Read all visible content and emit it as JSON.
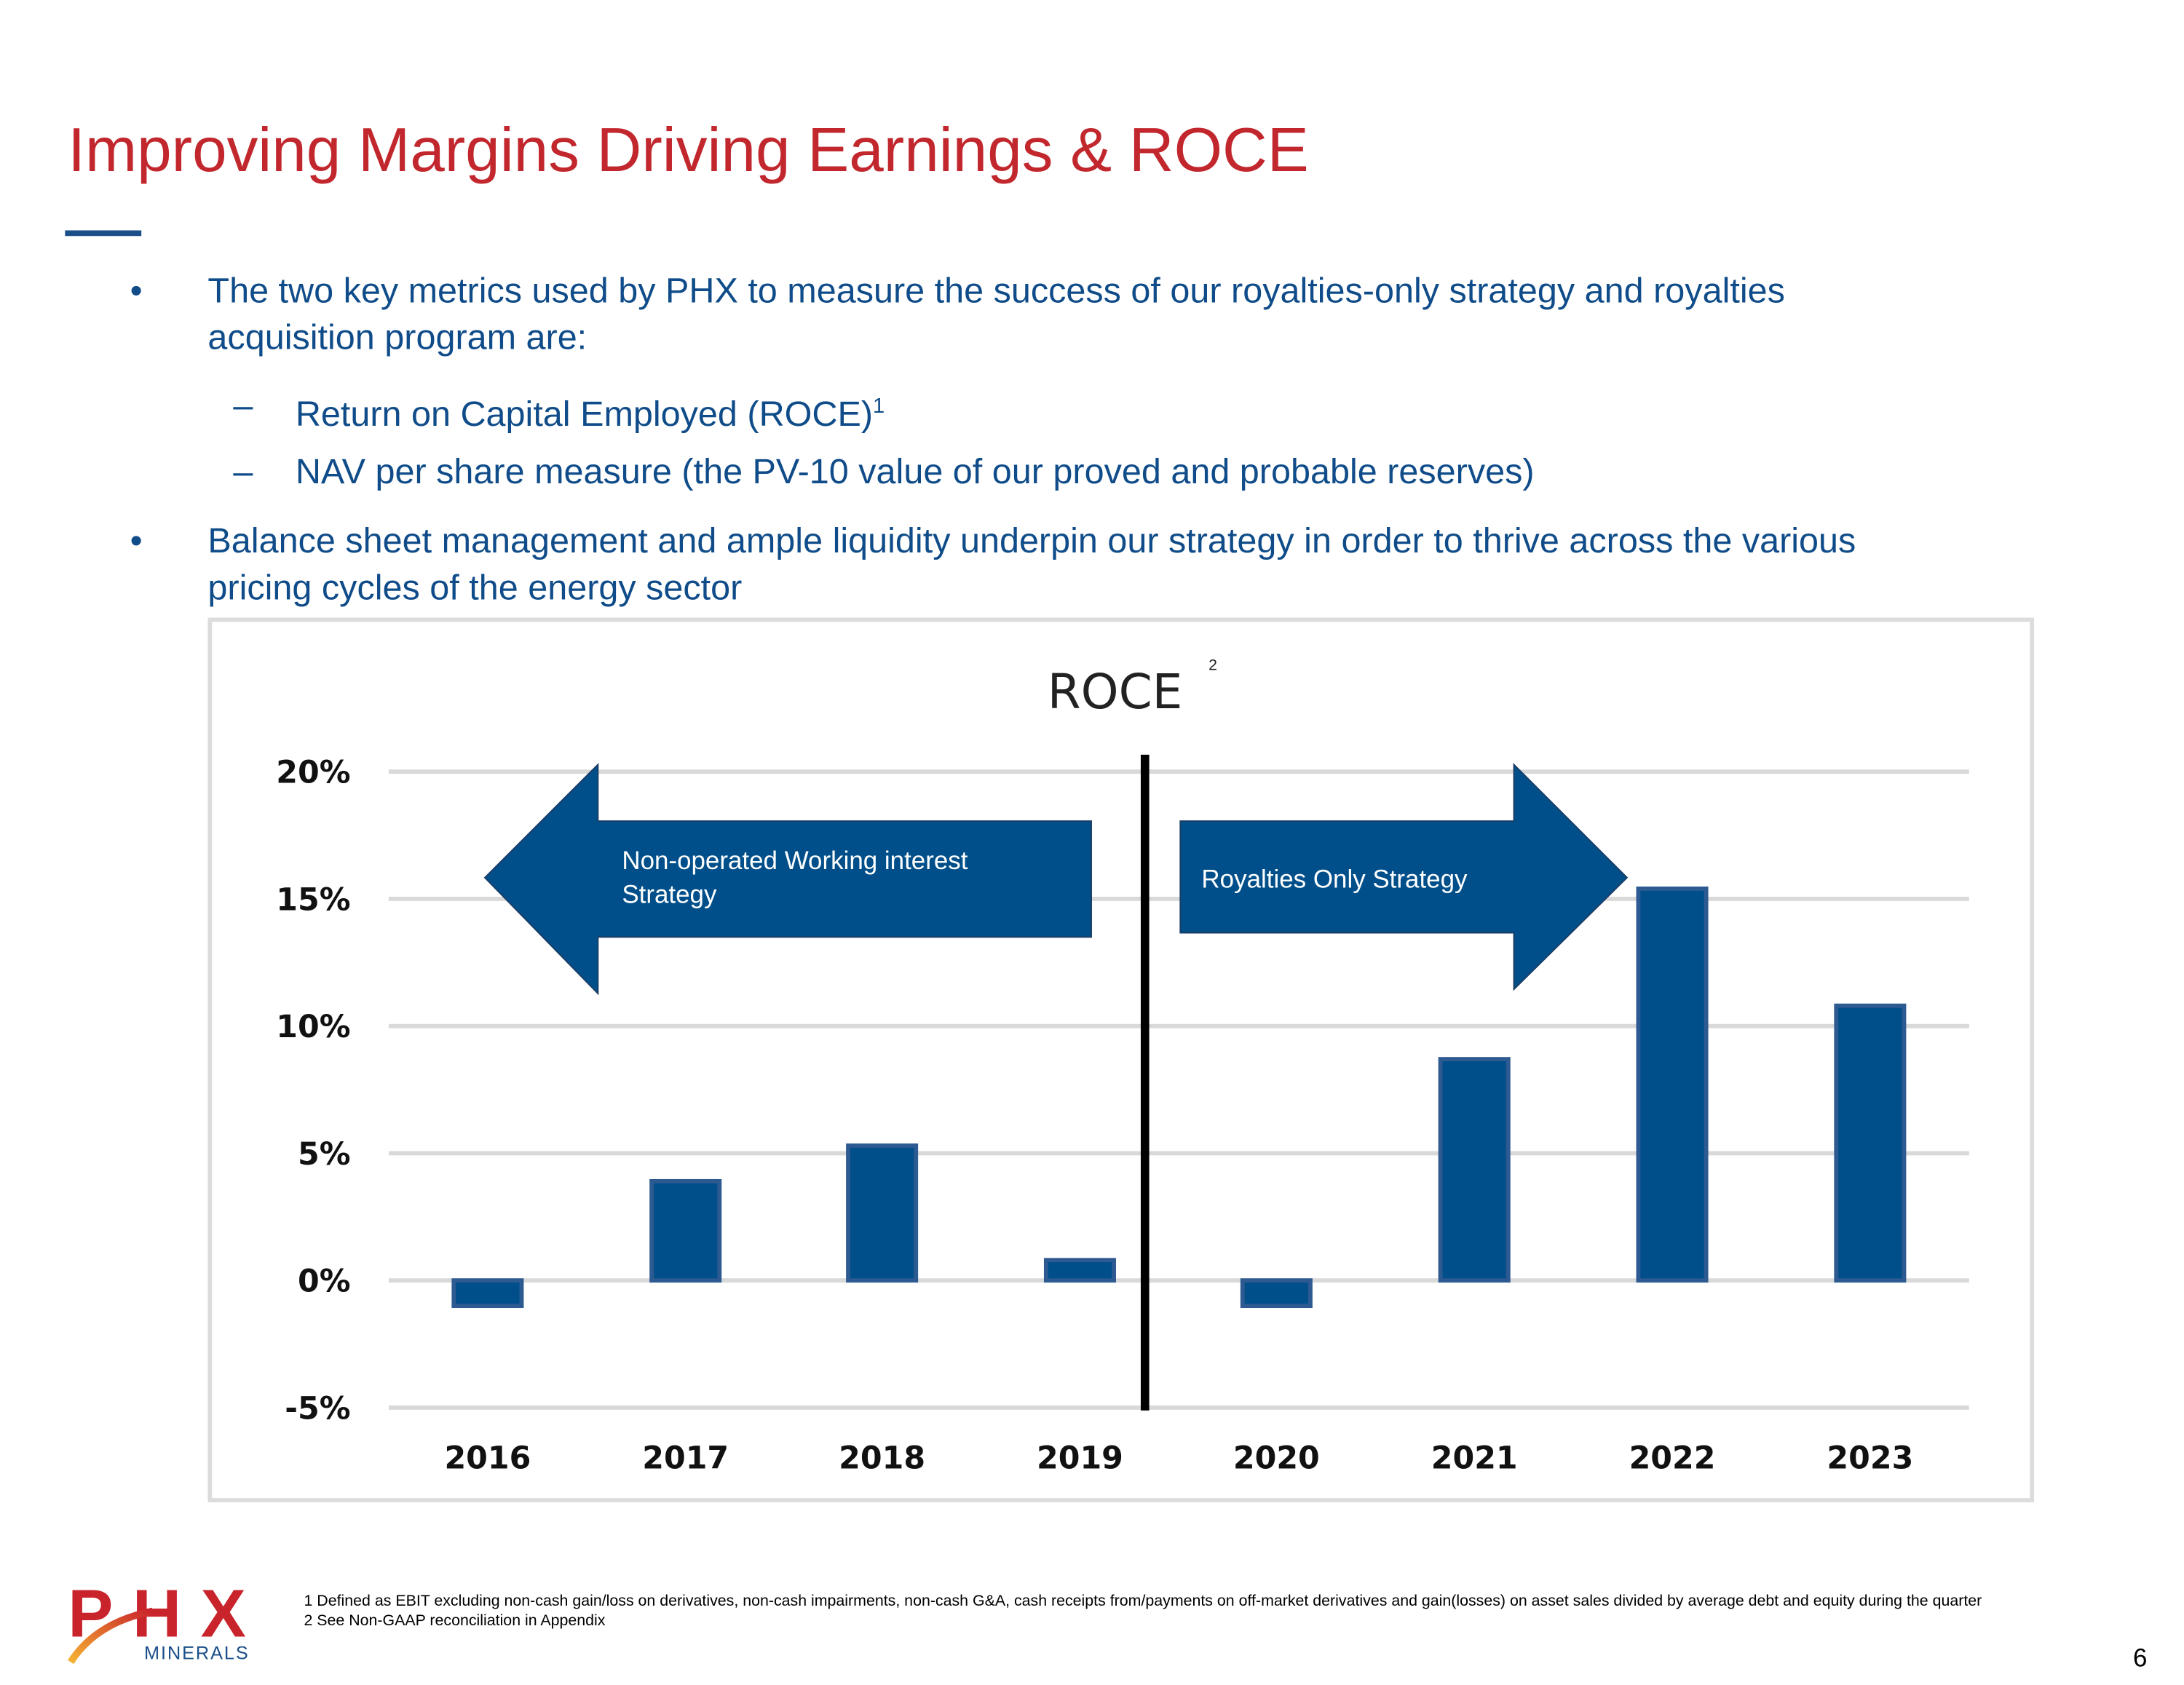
{
  "title": "Improving Margins Driving Earnings & ROCE",
  "bullets": [
    {
      "marker": "•",
      "text_line1": "The two key metrics used by PHX to measure the success of our royalties-only strategy and royalties",
      "text_line2": "acquisition program are:"
    },
    {
      "marker": "–",
      "text": "Return on Capital Employed (ROCE)",
      "sup": "1"
    },
    {
      "marker": "–",
      "text": "NAV per share measure (the PV-10 value of our proved and probable reserves)"
    },
    {
      "marker": "•",
      "text_line1": "Balance sheet management and ample liquidity underpin our strategy in order to thrive across the various",
      "text_line2": "pricing cycles of the energy sector"
    }
  ],
  "chart_data": {
    "type": "bar",
    "title": "ROCE",
    "title_sup": "2",
    "categories": [
      "2016",
      "2017",
      "2018",
      "2019",
      "2020",
      "2021",
      "2022",
      "2023"
    ],
    "values": [
      -1.0,
      3.9,
      5.3,
      0.8,
      -1.0,
      8.7,
      15.4,
      10.8
    ],
    "unit": "%",
    "ylim": [
      -5,
      20
    ],
    "yticks": [
      -5,
      0,
      5,
      10,
      15,
      20
    ],
    "ytick_labels": [
      "-5%",
      "0%",
      "5%",
      "10%",
      "15%",
      "20%"
    ],
    "grid": true,
    "bar_color": "#004f8a",
    "annotations": {
      "left_arrow": "Non-operated Working interest Strategy",
      "left_arrow_line1": "Non-operated Working interest",
      "left_arrow_line2": "Strategy",
      "right_arrow": "Royalties Only Strategy",
      "divider_between": [
        "2019",
        "2020"
      ]
    }
  },
  "footnotes": [
    "1 Defined as EBIT excluding non-cash gain/loss on derivatives, non-cash impairments, non-cash G&A, cash receipts from/payments on off-market derivatives and gain(losses) on asset sales divided by average debt and equity during the quarter",
    "2 See Non-GAAP reconciliation in Appendix"
  ],
  "logo": {
    "main": "PHX",
    "sub": "MINERALS"
  },
  "page_number": "6",
  "colors": {
    "title": "#c1272d",
    "text": "#0f4c89",
    "accent": "#004f8a"
  }
}
